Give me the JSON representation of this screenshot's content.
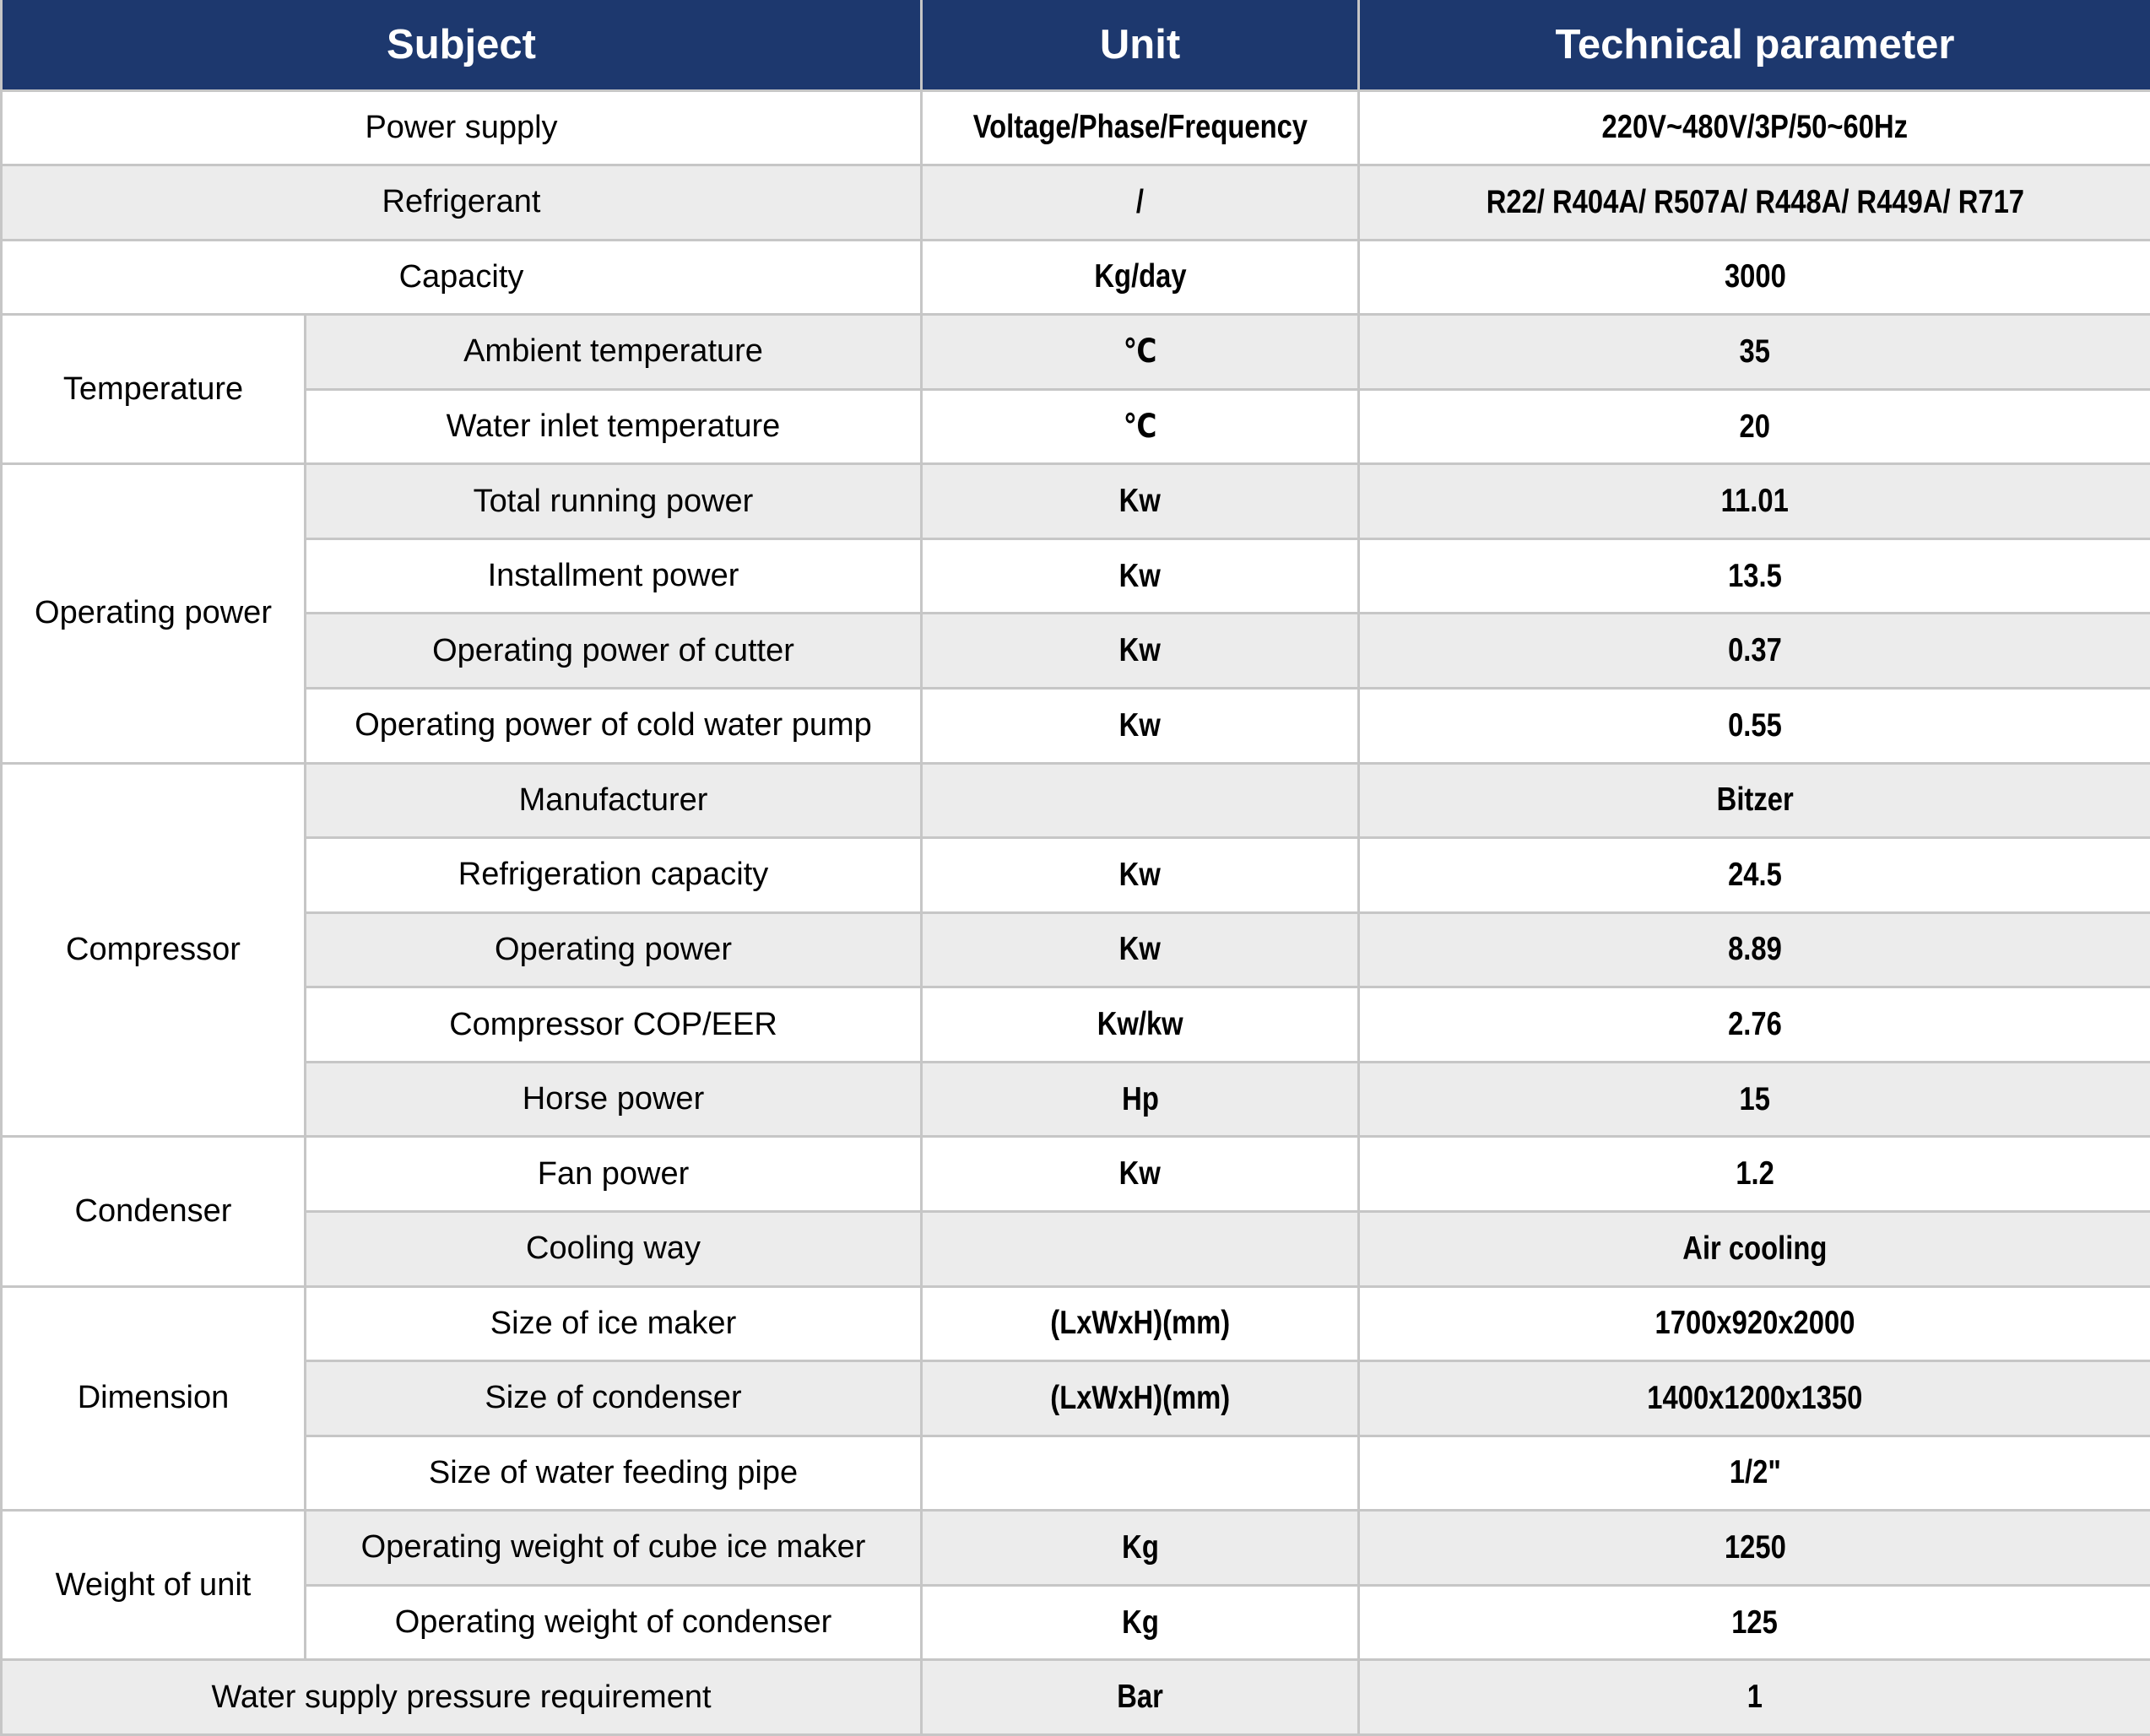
{
  "colors": {
    "header_bg": "#1d386e",
    "header_fg": "#ffffff",
    "row_alt": "#ececec",
    "row_plain": "#ffffff",
    "grid": "#c6c6c6"
  },
  "header": {
    "subject": "Subject",
    "unit": "Unit",
    "parameter": "Technical parameter"
  },
  "rows": [
    {
      "subject": "Power supply",
      "span": 2,
      "unit": "Voltage/Phase/Frequency",
      "value": "220V~480V/3P/50~60Hz"
    },
    {
      "subject": "Refrigerant",
      "span": 2,
      "unit": "/",
      "value": "R22/ R404A/ R507A/ R448A/ R449A/ R717"
    },
    {
      "subject": "Capacity",
      "span": 2,
      "unit": "Kg/day",
      "value": "3000"
    },
    {
      "group": "Temperature",
      "group_rows": 2,
      "subject": "Ambient temperature",
      "unit": "℃",
      "value": "35"
    },
    {
      "subject": "Water inlet temperature",
      "unit": "℃",
      "value": "20"
    },
    {
      "group": "Operating power",
      "group_rows": 4,
      "subject": "Total running power",
      "unit": "Kw",
      "value": "11.01"
    },
    {
      "subject": "Installment power",
      "unit": "Kw",
      "value": "13.5"
    },
    {
      "subject": "Operating power of cutter",
      "unit": "Kw",
      "value": "0.37"
    },
    {
      "subject": "Operating power of cold water pump",
      "unit": "Kw",
      "value": "0.55"
    },
    {
      "group": "Compressor",
      "group_rows": 5,
      "subject": "Manufacturer",
      "unit": "",
      "value": "Bitzer"
    },
    {
      "subject": "Refrigeration capacity",
      "unit": "Kw",
      "value": "24.5"
    },
    {
      "subject": "Operating power",
      "unit": "Kw",
      "value": "8.89"
    },
    {
      "subject": "Compressor COP/EER",
      "unit": "Kw/kw",
      "value": "2.76"
    },
    {
      "subject": "Horse power",
      "unit": "Hp",
      "value": "15"
    },
    {
      "group": "Condenser",
      "group_rows": 2,
      "subject": "Fan power",
      "unit": "Kw",
      "value": "1.2"
    },
    {
      "subject": "Cooling way",
      "unit": "",
      "value": "Air cooling"
    },
    {
      "group": "Dimension",
      "group_rows": 3,
      "subject": "Size of ice maker",
      "unit": "(LxWxH)(mm)",
      "value": "1700x920x2000"
    },
    {
      "subject": "Size of condenser",
      "unit": "(LxWxH)(mm)",
      "value": "1400x1200x1350"
    },
    {
      "subject": "Size of water feeding pipe",
      "unit": "",
      "value": "1/2\""
    },
    {
      "group": "Weight of unit",
      "group_rows": 2,
      "subject": "Operating weight of cube ice maker",
      "unit": "Kg",
      "value": "1250"
    },
    {
      "subject": "Operating weight of condenser",
      "unit": "Kg",
      "value": "125"
    },
    {
      "subject": "Water supply pressure requirement",
      "span": 2,
      "unit": "Bar",
      "value": "1"
    }
  ]
}
